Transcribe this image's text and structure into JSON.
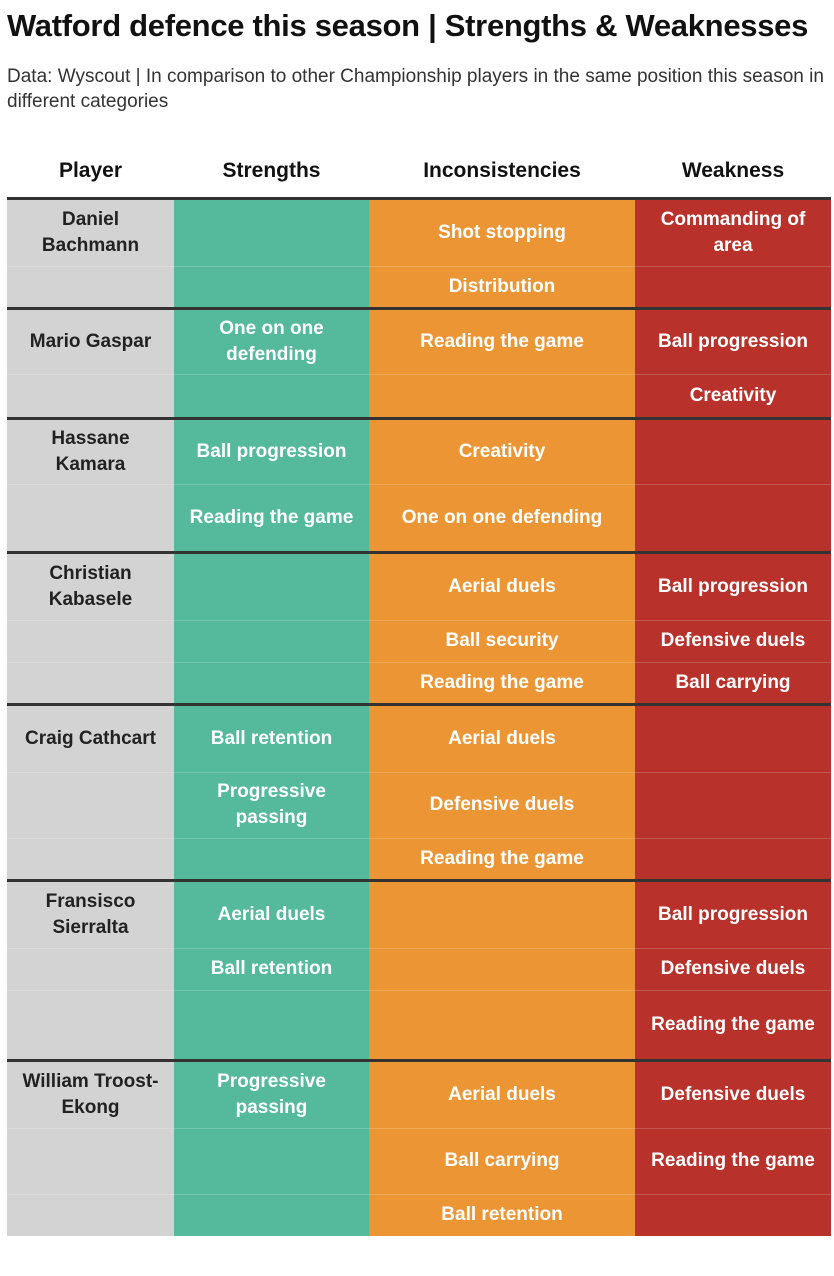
{
  "chart_data": {
    "type": "table",
    "title": "Watford defence this season | Strengths & Weaknesses",
    "subtitle": "Data: Wyscout | In comparison to other Championship players in the same position this season in different categories",
    "columns": [
      "Player",
      "Strengths",
      "Inconsistencies",
      "Weakness"
    ],
    "colors": {
      "player": "#d3d3d3",
      "strengths": "#55b99c",
      "inconsistencies": "#ec9535",
      "weakness": "#b8312b"
    },
    "players": [
      {
        "name": "Daniel Bachmann",
        "rows": [
          {
            "strength": "",
            "inconsistency": "Shot stopping",
            "weakness": "Commanding of area"
          },
          {
            "strength": "",
            "inconsistency": "Distribution",
            "weakness": ""
          }
        ]
      },
      {
        "name": "Mario Gaspar",
        "rows": [
          {
            "strength": "One on one defending",
            "inconsistency": "Reading the game",
            "weakness": "Ball progression"
          },
          {
            "strength": "",
            "inconsistency": "",
            "weakness": "Creativity"
          }
        ]
      },
      {
        "name": "Hassane Kamara",
        "rows": [
          {
            "strength": "Ball progression",
            "inconsistency": "Creativity",
            "weakness": ""
          },
          {
            "strength": "Reading the game",
            "inconsistency": "One on one defending",
            "weakness": ""
          }
        ]
      },
      {
        "name": "Christian Kabasele",
        "rows": [
          {
            "strength": "",
            "inconsistency": "Aerial duels",
            "weakness": "Ball progression"
          },
          {
            "strength": "",
            "inconsistency": "Ball security",
            "weakness": "Defensive duels"
          },
          {
            "strength": "",
            "inconsistency": "Reading the game",
            "weakness": "Ball carrying"
          }
        ]
      },
      {
        "name": "Craig Cathcart",
        "rows": [
          {
            "strength": "Ball retention",
            "inconsistency": "Aerial duels",
            "weakness": ""
          },
          {
            "strength": "Progressive passing",
            "inconsistency": "Defensive duels",
            "weakness": ""
          },
          {
            "strength": "",
            "inconsistency": "Reading the game",
            "weakness": ""
          }
        ]
      },
      {
        "name": "Fransisco Sierralta",
        "rows": [
          {
            "strength": "Aerial duels",
            "inconsistency": "",
            "weakness": "Ball progression"
          },
          {
            "strength": "Ball retention",
            "inconsistency": "",
            "weakness": "Defensive duels"
          },
          {
            "strength": "",
            "inconsistency": "",
            "weakness": "Reading the game"
          }
        ]
      },
      {
        "name": "William Troost-Ekong",
        "rows": [
          {
            "strength": "Progressive passing",
            "inconsistency": "Aerial duels",
            "weakness": "Defensive duels"
          },
          {
            "strength": "",
            "inconsistency": "Ball carrying",
            "weakness": "Reading the game"
          },
          {
            "strength": "",
            "inconsistency": "Ball retention",
            "weakness": ""
          }
        ]
      }
    ]
  }
}
